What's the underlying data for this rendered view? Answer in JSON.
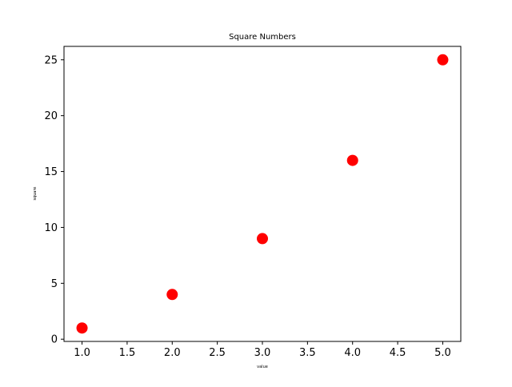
{
  "chart_data": {
    "type": "scatter",
    "title": "Square Numbers",
    "xlabel": "value",
    "ylabel": "square",
    "x": [
      1,
      2,
      3,
      4,
      5
    ],
    "y": [
      1,
      4,
      9,
      16,
      25
    ],
    "xlim": [
      0.8,
      5.2
    ],
    "ylim": [
      -0.2,
      26.2
    ],
    "x_ticks": [
      1.0,
      1.5,
      2.0,
      2.5,
      3.0,
      3.5,
      4.0,
      4.5,
      5.0
    ],
    "x_tick_labels": [
      "1.0",
      "1.5",
      "2.0",
      "2.5",
      "3.0",
      "3.5",
      "4.0",
      "4.5",
      "5.0"
    ],
    "y_ticks": [
      0,
      5,
      10,
      15,
      20,
      25
    ],
    "y_tick_labels": [
      "0",
      "5",
      "10",
      "15",
      "20",
      "25"
    ],
    "grid": false,
    "marker_color": "#ff0000"
  }
}
